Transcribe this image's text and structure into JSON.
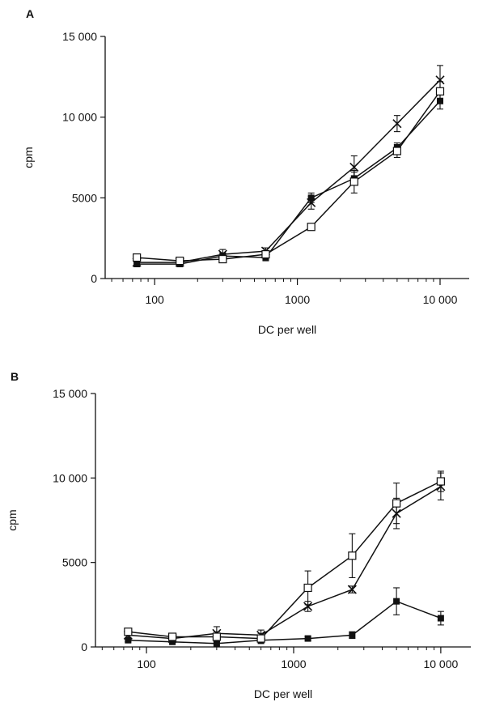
{
  "chart_data": [
    {
      "type": "line",
      "panel_label": "A",
      "xlabel": "DC per well",
      "ylabel": "cpm",
      "xscale": "log",
      "xlim": [
        45,
        16000
      ],
      "ylim": [
        0,
        15000
      ],
      "x_ticks": [
        100,
        1000,
        10000
      ],
      "x_tick_labels": [
        "100",
        "1000",
        "10 000"
      ],
      "y_ticks": [
        0,
        5000,
        10000,
        15000
      ],
      "y_tick_labels": [
        "0",
        "5000",
        "10 000",
        "15 000"
      ],
      "grid": false,
      "x": [
        75,
        150,
        300,
        600,
        1250,
        2500,
        5000,
        10000
      ],
      "series": [
        {
          "marker": "x",
          "color": "#111111",
          "values": [
            1000,
            1000,
            1500,
            1700,
            4700,
            6900,
            9600,
            12300
          ],
          "errors": [
            100,
            100,
            300,
            200,
            400,
            700,
            500,
            900
          ]
        },
        {
          "marker": "filled-square",
          "color": "#111111",
          "values": [
            900,
            900,
            1400,
            1300,
            5000,
            6200,
            8100,
            11000
          ],
          "errors": [
            100,
            100,
            200,
            200,
            300,
            400,
            300,
            500
          ]
        },
        {
          "marker": "open-square",
          "color": "#111111",
          "values": [
            1300,
            1100,
            1200,
            1500,
            3200,
            6000,
            7900,
            11600
          ],
          "errors": [
            100,
            100,
            200,
            200,
            200,
            700,
            400,
            600
          ]
        }
      ]
    },
    {
      "type": "line",
      "panel_label": "B",
      "xlabel": "DC per well",
      "ylabel": "cpm",
      "xscale": "log",
      "xlim": [
        45,
        16000
      ],
      "ylim": [
        0,
        15000
      ],
      "x_ticks": [
        100,
        1000,
        10000
      ],
      "x_tick_labels": [
        "100",
        "1000",
        "10 000"
      ],
      "y_ticks": [
        0,
        5000,
        10000,
        15000
      ],
      "y_tick_labels": [
        "0",
        "5000",
        "10 000",
        "15 000"
      ],
      "grid": false,
      "x": [
        75,
        150,
        300,
        600,
        1250,
        2500,
        5000,
        10000
      ],
      "series": [
        {
          "marker": "x",
          "color": "#111111",
          "values": [
            700,
            500,
            800,
            700,
            2400,
            3400,
            7900,
            9500
          ],
          "errors": [
            200,
            200,
            400,
            300,
            300,
            200,
            900,
            800
          ]
        },
        {
          "marker": "filled-square",
          "color": "#111111",
          "values": [
            400,
            300,
            200,
            400,
            500,
            700,
            2700,
            1700
          ],
          "errors": [
            100,
            100,
            100,
            100,
            100,
            200,
            800,
            400
          ]
        },
        {
          "marker": "open-square",
          "color": "#111111",
          "values": [
            900,
            600,
            600,
            500,
            3500,
            5400,
            8500,
            9800
          ],
          "errors": [
            100,
            100,
            300,
            300,
            1000,
            1300,
            1200,
            600
          ]
        }
      ]
    }
  ]
}
